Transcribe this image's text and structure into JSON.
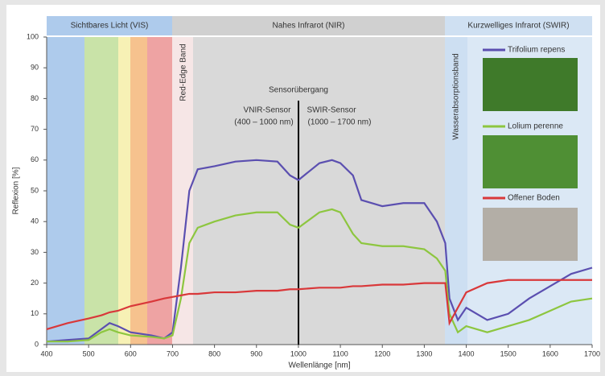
{
  "chart_data": {
    "type": "line",
    "x_label": "Wellenlänge [nm]",
    "y_label": "Reflexion [%]",
    "regions": [
      "Sichtbares Licht (VIS)",
      "Nahes Infrarot (NIR)",
      "Kurzwelliges Infrarot (SWIR)"
    ],
    "annotations": {
      "red_edge": "Red-Edge Band",
      "water": "Wasserabsorptionsband",
      "transition": "Sensorübergang",
      "vnir": "VNIR-Sensor",
      "vnir_range": "(400 – 1000 nm)",
      "swir": "SWIR-Sensor",
      "swir_range": "(1000 – 1700 nm)"
    },
    "x": [
      400,
      450,
      500,
      530,
      550,
      570,
      600,
      650,
      680,
      700,
      720,
      740,
      760,
      800,
      850,
      900,
      950,
      980,
      1000,
      1050,
      1080,
      1100,
      1130,
      1150,
      1200,
      1250,
      1300,
      1330,
      1350,
      1360,
      1380,
      1400,
      1450,
      1500,
      1550,
      1600,
      1650,
      1700
    ],
    "series": [
      {
        "name": "Trifolium repens",
        "color": "#5b4fb0",
        "values": [
          1,
          1.5,
          2,
          5,
          7,
          6,
          4,
          3,
          2,
          4,
          25,
          50,
          57,
          58,
          59.5,
          60,
          59.5,
          55,
          53.5,
          59,
          60,
          59,
          55,
          47,
          45,
          46,
          46,
          40,
          33,
          15,
          8,
          12,
          8,
          10,
          15,
          19,
          23,
          25
        ]
      },
      {
        "name": "Lolium perenne",
        "color": "#8dc63f",
        "values": [
          1,
          1,
          1.5,
          4,
          5,
          4,
          3,
          2.5,
          2,
          3,
          15,
          33,
          38,
          40,
          42,
          43,
          43,
          39,
          38,
          43,
          44,
          43,
          36,
          33,
          32,
          32,
          31,
          28,
          24,
          10,
          4,
          6,
          4,
          6,
          8,
          11,
          14,
          15
        ]
      },
      {
        "name": "Offener Boden",
        "color": "#d9383a",
        "values": [
          5,
          7,
          8.5,
          9.5,
          10.5,
          11,
          12.5,
          14,
          15,
          15.5,
          16,
          16.5,
          16.5,
          17,
          17,
          17.5,
          17.5,
          18,
          18,
          18.5,
          18.5,
          18.5,
          19,
          19,
          19.5,
          19.5,
          20,
          20,
          20,
          7,
          12,
          17,
          20,
          21,
          21,
          21,
          21,
          21
        ]
      }
    ],
    "xlim": [
      400,
      1700
    ],
    "ylim": [
      0,
      100
    ],
    "xticks": [
      400,
      500,
      600,
      700,
      800,
      900,
      1000,
      1100,
      1200,
      1300,
      1400,
      1500,
      1600,
      1700
    ],
    "yticks": [
      0,
      10,
      20,
      30,
      40,
      50,
      60,
      70,
      80,
      90,
      100
    ]
  }
}
